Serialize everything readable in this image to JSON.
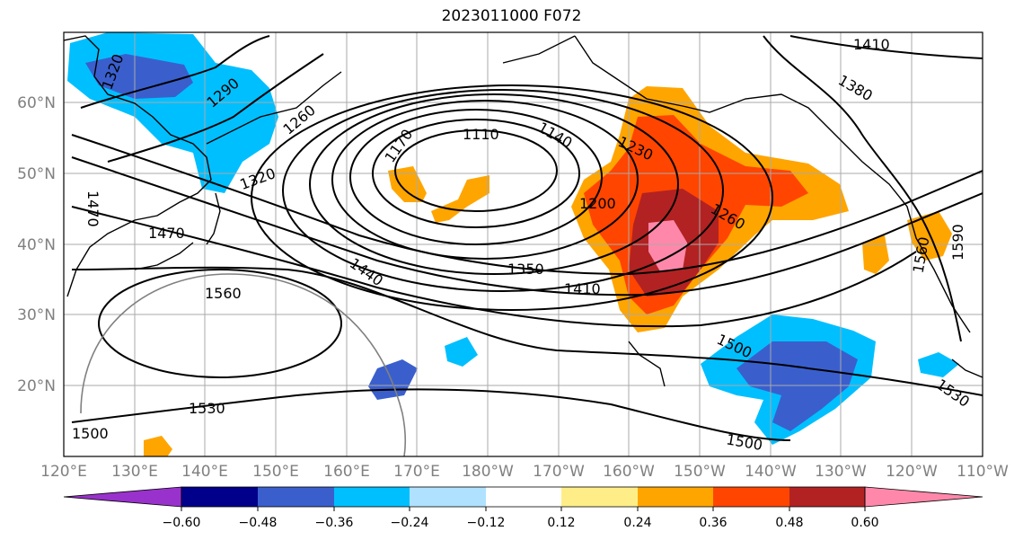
{
  "title": "2023011000 F072",
  "map": {
    "lon_ticks": [
      "120°E",
      "130°E",
      "140°E",
      "150°E",
      "160°E",
      "170°E",
      "180°W",
      "170°W",
      "160°W",
      "150°W",
      "140°W",
      "130°W",
      "120°W",
      "110°W"
    ],
    "lat_ticks": [
      "20°N",
      "30°N",
      "40°N",
      "50°N",
      "60°N"
    ],
    "contour_labels": [
      "1410",
      "1320",
      "1290",
      "1260",
      "1380",
      "1170",
      "1110",
      "1140",
      "1230",
      "1320",
      "1470",
      "1200",
      "1260",
      "1470",
      "1560",
      "1350",
      "1410",
      "1440",
      "1560",
      "1590",
      "1500",
      "1530",
      "1530",
      "1500",
      "1500"
    ],
    "grid": true
  },
  "colorbar": {
    "tick_labels": [
      "−0.60",
      "−0.48",
      "−0.36",
      "−0.24",
      "−0.12",
      "0.12",
      "0.24",
      "0.36",
      "0.48",
      "0.60"
    ],
    "colors": [
      "#9932cc",
      "#00008b",
      "#3a5fcd",
      "#00bfff",
      "#b0e2ff",
      "#ffffff",
      "#ffee88",
      "#ffa500",
      "#ff4500",
      "#b22222",
      "#ff88aa"
    ]
  }
}
